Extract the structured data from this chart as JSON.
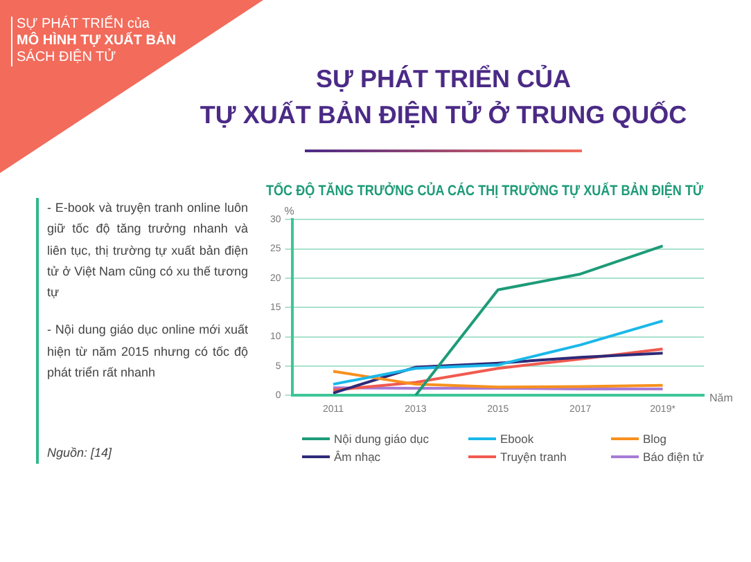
{
  "chart_data": {
    "type": "line",
    "title": "SỰ PHÁT TRIỂN CỦA\nTỰ XUẤT BẢN ĐIỆN TỬ Ở TRUNG QUỐC",
    "subtitle": "TỐC ĐỘ TĂNG TRƯỞNG CỦA CÁC THỊ TRƯỜNG TỰ XUẤT BẢN ĐIỆN TỬ",
    "xlabel": "Năm",
    "ylabel": "%",
    "categories": [
      "2011",
      "2013",
      "2015",
      "2017",
      "2019*"
    ],
    "series": [
      {
        "name": "Nội dung giáo dục",
        "color": "#1e9b78",
        "values": [
          null,
          0,
          18,
          20.7,
          25.5
        ]
      },
      {
        "name": "Ebook",
        "color": "#1ab8ea",
        "values": [
          1.9,
          4.6,
          5.2,
          8.6,
          12.7
        ]
      },
      {
        "name": "Blog",
        "color": "#f7901e",
        "values": [
          4.1,
          1.9,
          1.4,
          1.5,
          1.7
        ]
      },
      {
        "name": "Âm nhạc",
        "color": "#2e2a78",
        "values": [
          0.4,
          4.8,
          5.5,
          6.5,
          7.2
        ]
      },
      {
        "name": "Truyện tranh",
        "color": "#f15a50",
        "values": [
          0.9,
          2.2,
          4.6,
          6.2,
          7.9
        ]
      },
      {
        "name": "Báo điện tử",
        "color": "#a77bd6",
        "values": [
          1.3,
          1.2,
          1.2,
          1.1,
          1.1
        ]
      }
    ],
    "ylim": [
      0,
      30
    ],
    "yticks": [
      0,
      5,
      10,
      15,
      20,
      25,
      30
    ],
    "grid": "y",
    "legend": "bottom",
    "marker": "none",
    "line_style": "solid",
    "annotations": [
      "SỰ PHÁT TRIỂN của",
      "MÔ HÌNH TỰ XUẤT BẢN",
      "SÁCH ĐIỆN TỬ",
      "- E-book và truyện tranh online luôn giữ tốc độ tăng trưởng nhanh và liên tục, thị trường tự xuất bản điện tử ở Việt Nam cũng có xu thế tương tự",
      "- Nội dung giáo dục online mới xuất hiện từ năm 2015 nhưng có tốc độ phát triển rất nhanh",
      "Nguồn: [14]"
    ]
  }
}
